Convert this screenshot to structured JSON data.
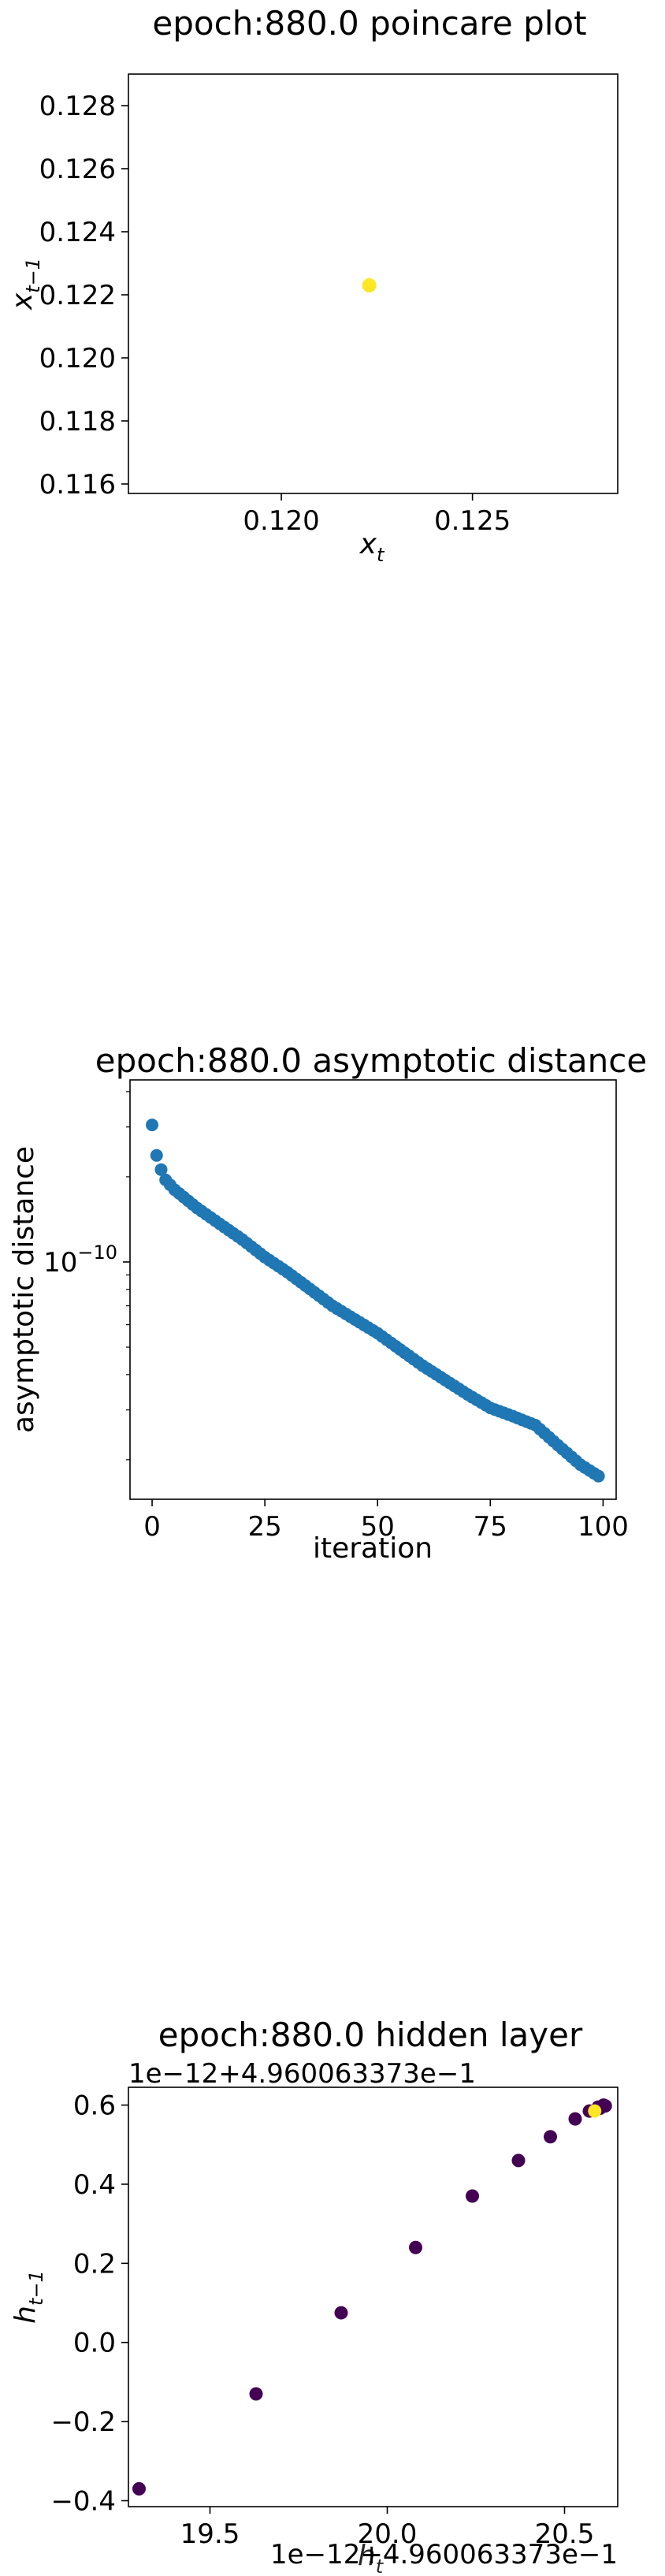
{
  "chart_data": [
    {
      "id": "poincare",
      "type": "scatter",
      "title": "epoch:880.0 poincare plot",
      "xlabel": "x_t",
      "ylabel": "x_{t-1}",
      "xlim": [
        0.116,
        0.1288
      ],
      "ylim": [
        0.1157,
        0.129
      ],
      "xticks": [
        {
          "v": 0.12,
          "label": "0.120"
        },
        {
          "v": 0.125,
          "label": "0.125"
        }
      ],
      "yticks": [
        {
          "v": 0.116,
          "label": "0.116"
        },
        {
          "v": 0.118,
          "label": "0.118"
        },
        {
          "v": 0.12,
          "label": "0.120"
        },
        {
          "v": 0.122,
          "label": "0.122"
        },
        {
          "v": 0.124,
          "label": "0.124"
        },
        {
          "v": 0.126,
          "label": "0.126"
        },
        {
          "v": 0.128,
          "label": "0.128"
        }
      ],
      "points": [
        {
          "x": 0.1223,
          "y": 0.1223
        }
      ],
      "point_color": "#fde725"
    },
    {
      "id": "asymptotic",
      "type": "scatter",
      "yscale": "log",
      "title": "epoch:880.0 asymptotic distance",
      "xlabel": "iteration",
      "ylabel": "asymptotic distance",
      "xlim": [
        -4.9,
        102.9
      ],
      "ylim": [
        1.45e-11,
        4.4e-10
      ],
      "xticks": [
        {
          "v": 0,
          "label": "0"
        },
        {
          "v": 25,
          "label": "25"
        },
        {
          "v": 50,
          "label": "50"
        },
        {
          "v": 75,
          "label": "75"
        },
        {
          "v": 100,
          "label": "100"
        }
      ],
      "yticks": [
        {
          "v": 1e-10,
          "base": "10",
          "exp": "−10"
        }
      ],
      "anchors": [
        [
          0,
          3.05e-10
        ],
        [
          1,
          2.38e-10
        ],
        [
          2,
          2.12e-10
        ],
        [
          3,
          1.95e-10
        ],
        [
          5,
          1.8e-10
        ],
        [
          10,
          1.55e-10
        ],
        [
          20,
          1.2e-10
        ],
        [
          25,
          1.04e-10
        ],
        [
          30,
          9.2e-11
        ],
        [
          40,
          7e-11
        ],
        [
          50,
          5.6e-11
        ],
        [
          60,
          4.3e-11
        ],
        [
          70,
          3.4e-11
        ],
        [
          75,
          3.05e-11
        ],
        [
          80,
          2.85e-11
        ],
        [
          85,
          2.65e-11
        ],
        [
          90,
          2.25e-11
        ],
        [
          95,
          1.92e-11
        ],
        [
          99,
          1.75e-11
        ]
      ],
      "n_points": 100,
      "point_color": "#1f77b4"
    },
    {
      "id": "hidden",
      "type": "scatter",
      "title": "epoch:880.0 hidden layer",
      "ylabel": "h_{t-1}",
      "x_offset_text": "1e−12+4.960063373e−1",
      "y_offset_text": "1e−12+4.960063373e−1",
      "xlim": [
        19.27,
        20.65
      ],
      "ylim": [
        -0.415,
        0.645
      ],
      "xticks": [
        {
          "v": 19.5,
          "label": "19.5"
        },
        {
          "v": 20.0,
          "label": "20.0"
        },
        {
          "v": 20.5,
          "label": "20.5"
        }
      ],
      "yticks": [
        {
          "v": -0.4,
          "label": "−0.4"
        },
        {
          "v": -0.2,
          "label": "−0.2"
        },
        {
          "v": 0.0,
          "label": "0.0"
        },
        {
          "v": 0.2,
          "label": "0.2"
        },
        {
          "v": 0.4,
          "label": "0.4"
        },
        {
          "v": 0.6,
          "label": "0.6"
        }
      ],
      "points": [
        {
          "x": 19.3,
          "y": -0.37
        },
        {
          "x": 19.63,
          "y": -0.13
        },
        {
          "x": 19.87,
          "y": 0.075
        },
        {
          "x": 20.08,
          "y": 0.24
        },
        {
          "x": 20.24,
          "y": 0.37
        },
        {
          "x": 20.37,
          "y": 0.46
        },
        {
          "x": 20.46,
          "y": 0.52
        },
        {
          "x": 20.53,
          "y": 0.565
        },
        {
          "x": 20.57,
          "y": 0.585
        },
        {
          "x": 20.595,
          "y": 0.595
        },
        {
          "x": 20.61,
          "y": 0.6
        },
        {
          "x": 20.6,
          "y": 0.592
        },
        {
          "x": 20.615,
          "y": 0.598
        }
      ],
      "final_point": {
        "x": 20.585,
        "y": 0.585
      },
      "point_color": "#440154",
      "final_color": "#fde725"
    }
  ]
}
